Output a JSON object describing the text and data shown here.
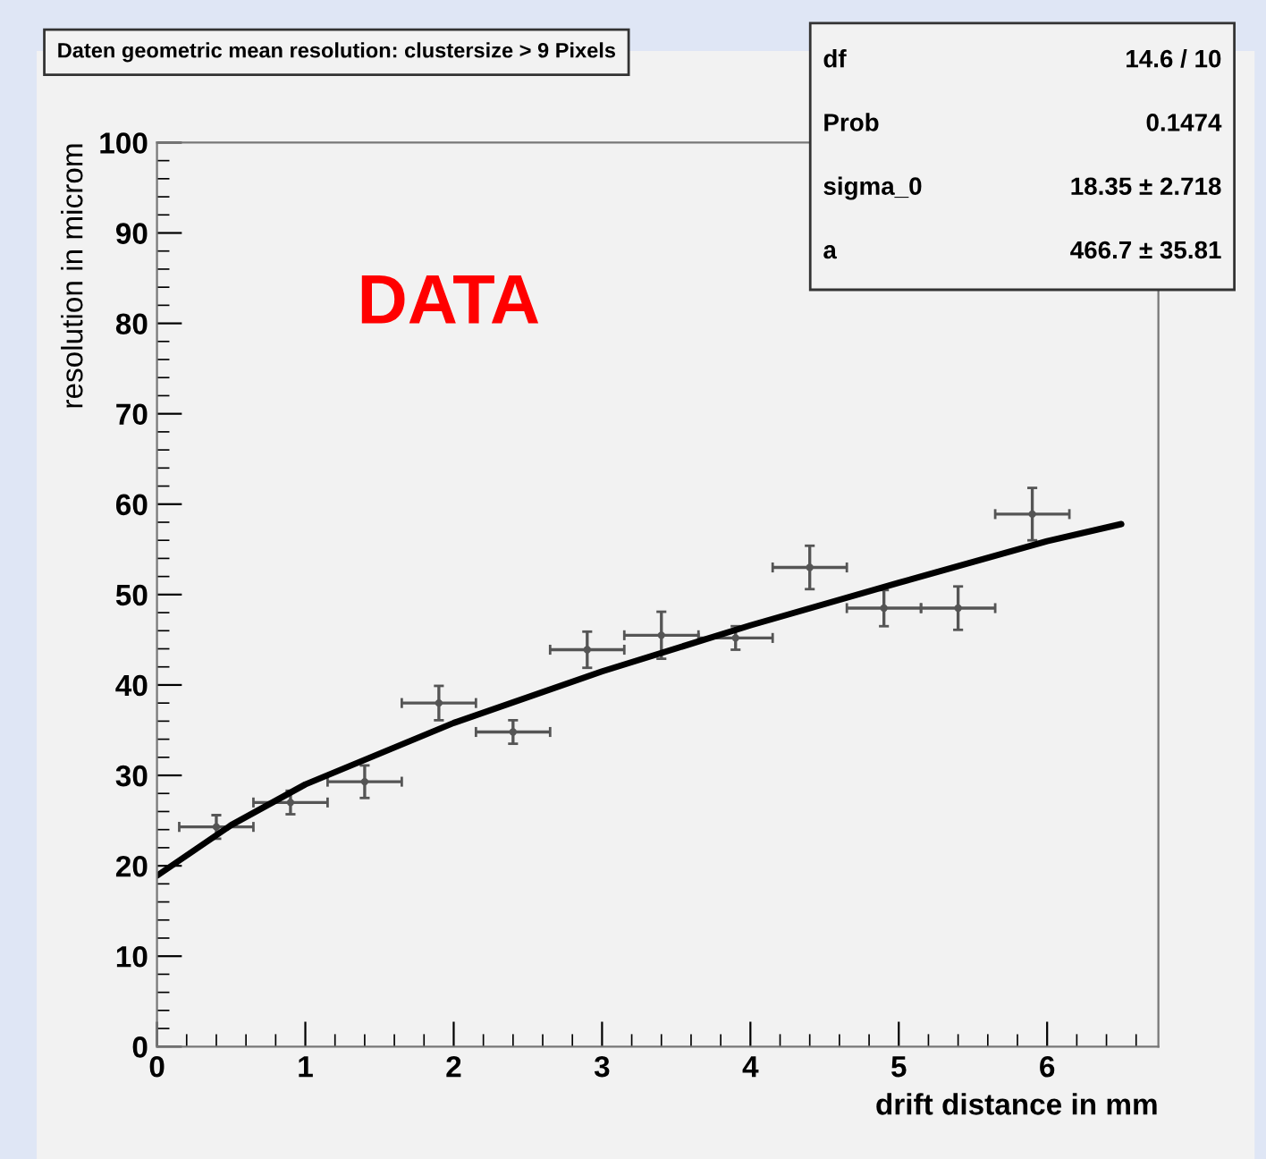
{
  "chart_data": {
    "type": "scatter",
    "title": "Daten geometric mean resolution: clustersize > 9 Pixels",
    "xlabel": "drift distance in mm",
    "ylabel": "resolution in microm",
    "xlim": [
      0,
      6.75
    ],
    "xticks": [
      0,
      1,
      2,
      3,
      4,
      5,
      6
    ],
    "ylim": [
      0,
      100
    ],
    "yticks": [
      0,
      10,
      20,
      30,
      40,
      50,
      60,
      70,
      80,
      90,
      100
    ],
    "grid": false,
    "annotations": [
      "DATA",
      "df  14.6 / 10",
      "Prob  0.1474",
      "sigma_0  18.35 ± 2.718",
      "a  466.7 ± 35.81"
    ],
    "series": [
      {
        "color": "#555555",
        "x": [
          0.4,
          0.9,
          1.4,
          1.9,
          2.4,
          2.9,
          3.4,
          3.9,
          4.4,
          4.9,
          5.4,
          5.9
        ],
        "values": [
          24.3,
          27.0,
          29.3,
          38.0,
          34.8,
          43.9,
          45.5,
          45.2,
          53.0,
          48.5,
          48.5,
          58.9
        ],
        "errors": [
          1.3,
          1.3,
          1.8,
          1.9,
          1.3,
          2.0,
          2.6,
          1.3,
          2.4,
          2.0,
          2.4,
          2.9
        ],
        "xerrors": [
          0.25,
          0.25,
          0.25,
          0.25,
          0.25,
          0.25,
          0.25,
          0.25,
          0.25,
          0.25,
          0.25,
          0.25
        ]
      },
      {
        "type": "line",
        "color": "#000000",
        "line_style": "solid",
        "x": [
          0,
          0.5,
          1,
          2,
          3,
          4,
          5,
          6,
          6.5
        ],
        "values": [
          18.9,
          24.5,
          29.0,
          35.8,
          41.5,
          46.6,
          51.3,
          55.9,
          57.8
        ]
      }
    ]
  }
}
